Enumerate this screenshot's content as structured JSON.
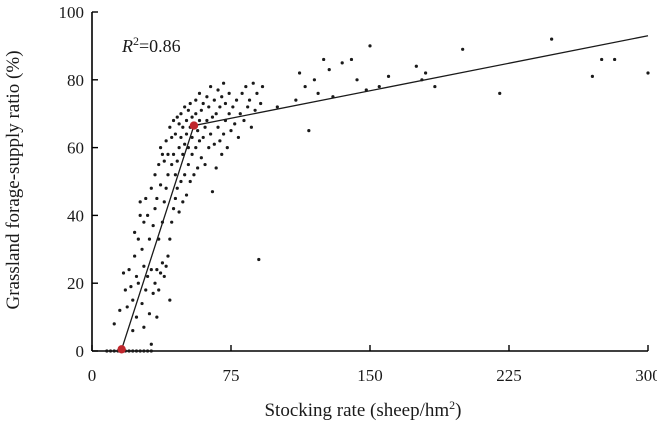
{
  "chart_data": {
    "type": "scatter",
    "title": "",
    "xlabel": "Stocking rate (sheep/hm",
    "xlabel_sup": "2",
    "xlabel_suffix": ")",
    "ylabel": "Grassland forage-supply ratio (%)",
    "xlim": [
      0,
      300
    ],
    "ylim": [
      0,
      100
    ],
    "xticks": [
      0,
      75,
      150,
      225,
      300
    ],
    "xtick_labels": [
      "0",
      "75",
      "150",
      "225",
      "300"
    ],
    "yticks": [
      0,
      20,
      40,
      60,
      80,
      100
    ],
    "ytick_labels": [
      "0",
      "20",
      "40",
      "60",
      "80",
      "100"
    ],
    "grid": false,
    "annotation": {
      "r_label": "R",
      "r_sup": "2",
      "r_value": "=0.86"
    },
    "fit_line": {
      "points": [
        [
          16,
          0.5
        ],
        [
          55,
          66.5
        ],
        [
          300,
          93
        ]
      ]
    },
    "breakpoints": {
      "color": "#c0272d",
      "points": [
        [
          16,
          0.5
        ],
        [
          55,
          66.5
        ]
      ]
    },
    "series": [
      {
        "color": "#1a1a1a",
        "points": [
          [
            8,
            0
          ],
          [
            10,
            0
          ],
          [
            12,
            0
          ],
          [
            14,
            0
          ],
          [
            16,
            0
          ],
          [
            18,
            0
          ],
          [
            20,
            0
          ],
          [
            22,
            0
          ],
          [
            24,
            0
          ],
          [
            26,
            0
          ],
          [
            28,
            0
          ],
          [
            30,
            0
          ],
          [
            32,
            0
          ],
          [
            12,
            8
          ],
          [
            15,
            12
          ],
          [
            17,
            23
          ],
          [
            18,
            18
          ],
          [
            19,
            13
          ],
          [
            20,
            24
          ],
          [
            21,
            19
          ],
          [
            22,
            6
          ],
          [
            22,
            15
          ],
          [
            23,
            28
          ],
          [
            23,
            35
          ],
          [
            24,
            10
          ],
          [
            24,
            22
          ],
          [
            25,
            20
          ],
          [
            25,
            33
          ],
          [
            26,
            40
          ],
          [
            26,
            44
          ],
          [
            27,
            14
          ],
          [
            27,
            30
          ],
          [
            28,
            7
          ],
          [
            28,
            25
          ],
          [
            28,
            38
          ],
          [
            29,
            18
          ],
          [
            29,
            45
          ],
          [
            30,
            22
          ],
          [
            30,
            40
          ],
          [
            31,
            11
          ],
          [
            31,
            33
          ],
          [
            32,
            2
          ],
          [
            32,
            24
          ],
          [
            32,
            48
          ],
          [
            33,
            17
          ],
          [
            33,
            37
          ],
          [
            34,
            20
          ],
          [
            34,
            42
          ],
          [
            34,
            52
          ],
          [
            35,
            10
          ],
          [
            35,
            24
          ],
          [
            35,
            45
          ],
          [
            36,
            18
          ],
          [
            36,
            33
          ],
          [
            36,
            55
          ],
          [
            37,
            23
          ],
          [
            37,
            49
          ],
          [
            37,
            60
          ],
          [
            38,
            26
          ],
          [
            38,
            38
          ],
          [
            38,
            58
          ],
          [
            39,
            22
          ],
          [
            39,
            44
          ],
          [
            39,
            56
          ],
          [
            40,
            25
          ],
          [
            40,
            48
          ],
          [
            40,
            62
          ],
          [
            41,
            28
          ],
          [
            41,
            52
          ],
          [
            41,
            58
          ],
          [
            42,
            15
          ],
          [
            42,
            33
          ],
          [
            42,
            66
          ],
          [
            43,
            38
          ],
          [
            43,
            55
          ],
          [
            43,
            63
          ],
          [
            44,
            42
          ],
          [
            44,
            58
          ],
          [
            44,
            68
          ],
          [
            45,
            45
          ],
          [
            45,
            52
          ],
          [
            45,
            64
          ],
          [
            46,
            48
          ],
          [
            46,
            56
          ],
          [
            46,
            69
          ],
          [
            47,
            41
          ],
          [
            47,
            60
          ],
          [
            47,
            67
          ],
          [
            48,
            50
          ],
          [
            48,
            63
          ],
          [
            48,
            70
          ],
          [
            49,
            44
          ],
          [
            49,
            58
          ],
          [
            49,
            66
          ],
          [
            50,
            52
          ],
          [
            50,
            61
          ],
          [
            50,
            72
          ],
          [
            51,
            46
          ],
          [
            51,
            64
          ],
          [
            51,
            68
          ],
          [
            52,
            55
          ],
          [
            52,
            60
          ],
          [
            52,
            71
          ],
          [
            53,
            50
          ],
          [
            53,
            66
          ],
          [
            53,
            73
          ],
          [
            54,
            58
          ],
          [
            54,
            63
          ],
          [
            54,
            69
          ],
          [
            55,
            52
          ],
          [
            55,
            67
          ],
          [
            56,
            60
          ],
          [
            56,
            70
          ],
          [
            56,
            74
          ],
          [
            57,
            54
          ],
          [
            57,
            65
          ],
          [
            58,
            62
          ],
          [
            58,
            68
          ],
          [
            58,
            76
          ],
          [
            59,
            57
          ],
          [
            59,
            71
          ],
          [
            60,
            63
          ],
          [
            60,
            73
          ],
          [
            61,
            55
          ],
          [
            61,
            66
          ],
          [
            62,
            68
          ],
          [
            62,
            75
          ],
          [
            63,
            60
          ],
          [
            63,
            72
          ],
          [
            64,
            64
          ],
          [
            64,
            78
          ],
          [
            65,
            47
          ],
          [
            65,
            69
          ],
          [
            66,
            61
          ],
          [
            66,
            74
          ],
          [
            67,
            54
          ],
          [
            67,
            70
          ],
          [
            68,
            66
          ],
          [
            68,
            77
          ],
          [
            69,
            62
          ],
          [
            69,
            72
          ],
          [
            70,
            58
          ],
          [
            70,
            75
          ],
          [
            71,
            64
          ],
          [
            71,
            79
          ],
          [
            72,
            68
          ],
          [
            72,
            73
          ],
          [
            73,
            60
          ],
          [
            74,
            70
          ],
          [
            74,
            76
          ],
          [
            75,
            65
          ],
          [
            76,
            72
          ],
          [
            77,
            67
          ],
          [
            78,
            74
          ],
          [
            79,
            63
          ],
          [
            80,
            70
          ],
          [
            81,
            76
          ],
          [
            82,
            68
          ],
          [
            83,
            78
          ],
          [
            84,
            72
          ],
          [
            85,
            74
          ],
          [
            86,
            66
          ],
          [
            87,
            79
          ],
          [
            88,
            71
          ],
          [
            89,
            76
          ],
          [
            90,
            27
          ],
          [
            91,
            73
          ],
          [
            92,
            78
          ],
          [
            100,
            72
          ],
          [
            110,
            74
          ],
          [
            112,
            82
          ],
          [
            115,
            78
          ],
          [
            117,
            65
          ],
          [
            120,
            80
          ],
          [
            122,
            76
          ],
          [
            125,
            86
          ],
          [
            128,
            83
          ],
          [
            130,
            75
          ],
          [
            135,
            85
          ],
          [
            140,
            86
          ],
          [
            143,
            80
          ],
          [
            148,
            77
          ],
          [
            150,
            90
          ],
          [
            155,
            78
          ],
          [
            160,
            81
          ],
          [
            175,
            84
          ],
          [
            178,
            80
          ],
          [
            180,
            82
          ],
          [
            185,
            78
          ],
          [
            200,
            89
          ],
          [
            220,
            76
          ],
          [
            248,
            92
          ],
          [
            270,
            81
          ],
          [
            275,
            86
          ],
          [
            282,
            86
          ],
          [
            300,
            82
          ]
        ]
      }
    ]
  }
}
